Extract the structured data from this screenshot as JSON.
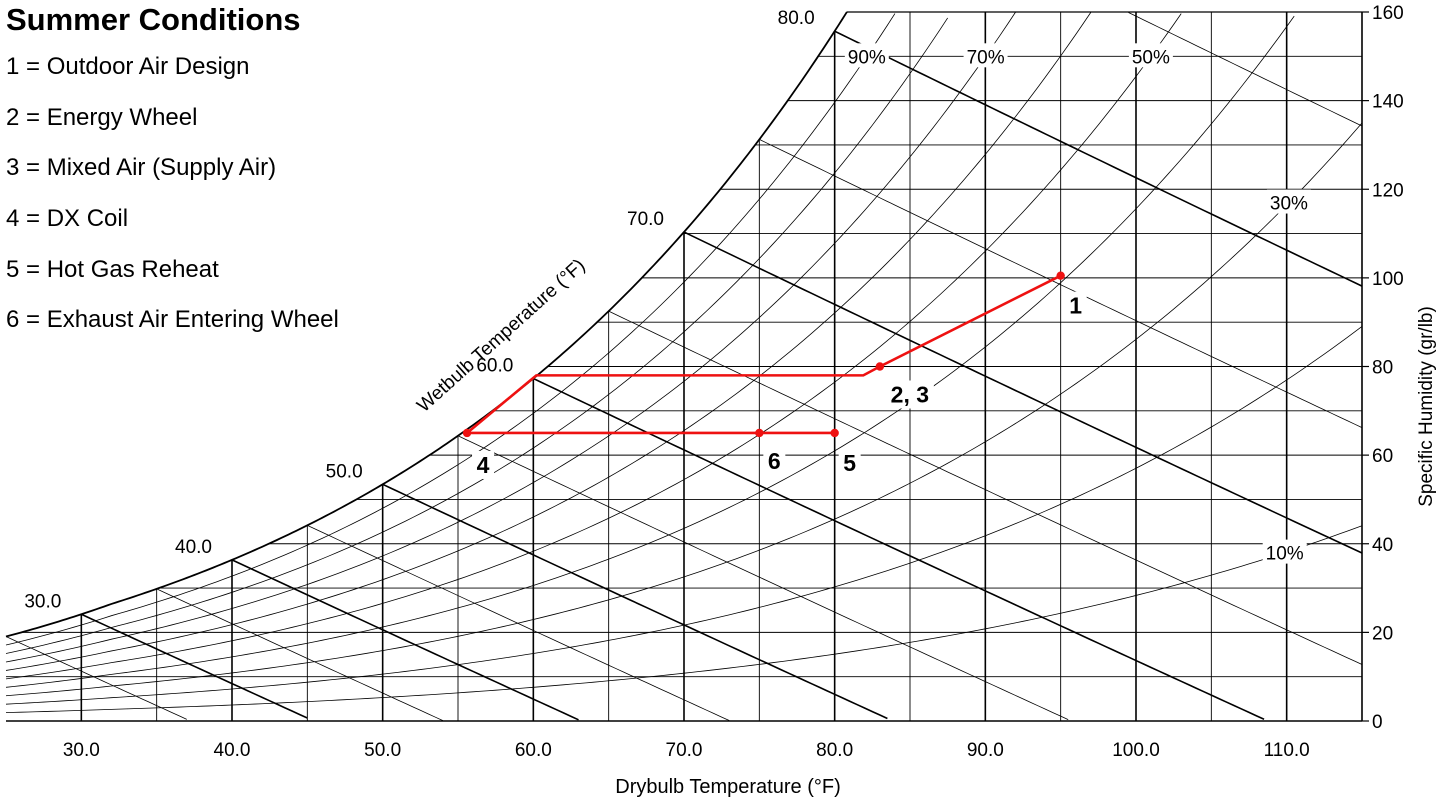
{
  "chart_data": {
    "type": "scatter",
    "chart_kind": "psychrometric chart",
    "title": "Summer Conditions",
    "legend_items": [
      "1 = Outdoor Air Design",
      "2 = Energy Wheel",
      "3 = Mixed Air (Supply Air)",
      "4 = DX Coil",
      "5 = Hot Gas Reheat",
      "6 = Exhaust Air Entering Wheel"
    ],
    "xlabel": "Drybulb Temperature (°F)",
    "ylabel": "Specific Humidity (gr/lb)",
    "wetbulb_label": "Wetbulb Temperature (°F)",
    "xlim": [
      25,
      115
    ],
    "ylim": [
      0,
      160
    ],
    "x_ticks": [
      "30.0",
      "40.0",
      "50.0",
      "60.0",
      "70.0",
      "80.0",
      "90.0",
      "100.0",
      "110.0"
    ],
    "x_tick_values": [
      30,
      40,
      50,
      60,
      70,
      80,
      90,
      100,
      110
    ],
    "y_ticks": [
      0,
      20,
      40,
      60,
      80,
      100,
      120,
      140,
      160
    ],
    "wetbulb_ticks": [
      "30.0",
      "40.0",
      "50.0",
      "60.0",
      "70.0",
      "80.0"
    ],
    "wetbulb_values": [
      30,
      40,
      50,
      60,
      70,
      80
    ],
    "rh_labels": [
      {
        "text": "90%",
        "rh": 0.9
      },
      {
        "text": "70%",
        "rh": 0.7
      },
      {
        "text": "50%",
        "rh": 0.5
      },
      {
        "text": "30%",
        "rh": 0.3
      },
      {
        "text": "10%",
        "rh": 0.1
      }
    ],
    "rh_curves": [
      0.1,
      0.2,
      0.3,
      0.4,
      0.5,
      0.6,
      0.7,
      0.8,
      0.9
    ],
    "grid": true,
    "process_color": "#ee1111",
    "process_path": [
      {
        "x": 95.0,
        "y": 100.5
      },
      {
        "x": 83.0,
        "y": 80.0
      },
      {
        "x": 81.9,
        "y": 78.0
      },
      {
        "x": 60.2,
        "y": 78.0
      },
      {
        "x": 55.6,
        "y": 65.0
      },
      {
        "x": 75.0,
        "y": 65.0
      },
      {
        "x": 80.0,
        "y": 65.0
      }
    ],
    "points": [
      {
        "label": "1",
        "x": 95.0,
        "y": 100.5
      },
      {
        "label": "2, 3",
        "x": 83.0,
        "y": 80.0
      },
      {
        "label": "4",
        "x": 55.6,
        "y": 65.0
      },
      {
        "label": "6",
        "x": 75.0,
        "y": 65.0
      },
      {
        "label": "5",
        "x": 80.0,
        "y": 65.0
      }
    ]
  }
}
